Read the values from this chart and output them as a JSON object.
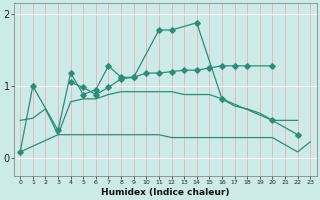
{
  "xlabel": "Humidex (Indice chaleur)",
  "series1_x": [
    0,
    1,
    3,
    4,
    5,
    6,
    7,
    8,
    9,
    11,
    12,
    14,
    16,
    20,
    22
  ],
  "series1_y": [
    0.08,
    1.0,
    0.38,
    1.18,
    0.88,
    0.95,
    1.28,
    1.12,
    1.12,
    1.78,
    1.78,
    1.88,
    0.82,
    0.52,
    0.32
  ],
  "series2_x": [
    4,
    5,
    6,
    7,
    8,
    9,
    10,
    11,
    12,
    13,
    14,
    15,
    16,
    17,
    18,
    20
  ],
  "series2_y": [
    1.05,
    0.98,
    0.88,
    0.98,
    1.1,
    1.12,
    1.18,
    1.18,
    1.2,
    1.22,
    1.22,
    1.25,
    1.28,
    1.28,
    1.28,
    1.28
  ],
  "series3_x": [
    0,
    1,
    2,
    3,
    4,
    5,
    6,
    7,
    8,
    9,
    10,
    11,
    12,
    13,
    14,
    15,
    16,
    17,
    18,
    19,
    20,
    21,
    22
  ],
  "series3_y": [
    0.52,
    0.55,
    0.68,
    0.32,
    0.78,
    0.82,
    0.82,
    0.88,
    0.92,
    0.92,
    0.92,
    0.92,
    0.92,
    0.88,
    0.88,
    0.88,
    0.82,
    0.72,
    0.68,
    0.62,
    0.52,
    0.52,
    0.52
  ],
  "series4_x": [
    0,
    3,
    4,
    5,
    6,
    7,
    8,
    9,
    10,
    11,
    12,
    13,
    14,
    15,
    16,
    17,
    18,
    19,
    20,
    21,
    22,
    23
  ],
  "series4_y": [
    0.08,
    0.32,
    0.32,
    0.32,
    0.32,
    0.32,
    0.32,
    0.32,
    0.32,
    0.32,
    0.28,
    0.28,
    0.28,
    0.28,
    0.28,
    0.28,
    0.28,
    0.28,
    0.28,
    0.18,
    0.08,
    0.22
  ],
  "line_color": "#2e8b7a",
  "bg_color": "#cceae8",
  "vgrid_color": "#e8b0b0",
  "hgrid_color": "#ffffff",
  "ylim": [
    -0.25,
    2.15
  ],
  "xlim": [
    -0.5,
    23.5
  ],
  "yticks": [
    0,
    1,
    2
  ],
  "ytick_labels": [
    "0",
    "1",
    "2"
  ],
  "xticks": [
    0,
    1,
    2,
    3,
    4,
    5,
    6,
    7,
    8,
    9,
    10,
    11,
    12,
    13,
    14,
    15,
    16,
    17,
    18,
    19,
    20,
    21,
    22,
    23
  ],
  "marker_size": 2.8
}
